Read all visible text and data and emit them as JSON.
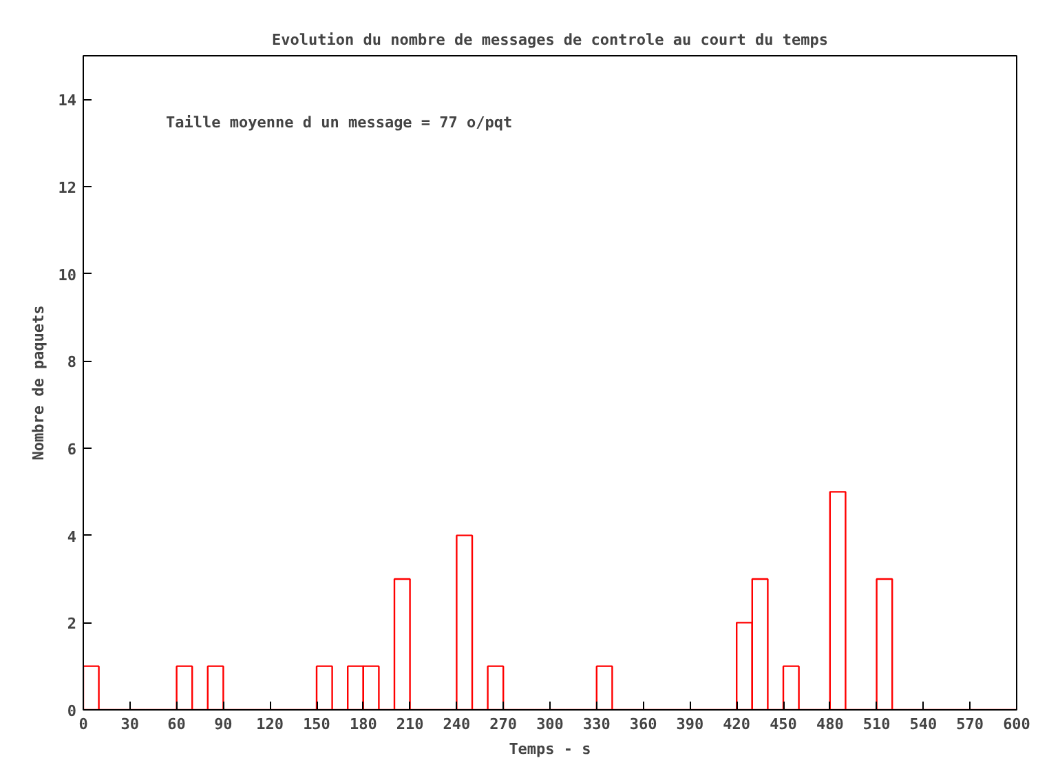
{
  "chart_data": {
    "type": "histogram",
    "title": "Evolution du nombre de messages de controle au court du temps",
    "xlabel": "Temps - s",
    "ylabel": "Nombre de paquets",
    "annotations": [
      "Taille moyenne d un message = 77 o/pqt"
    ],
    "bins": [
      0,
      10,
      20,
      30,
      40,
      50,
      60,
      70,
      80,
      90,
      100,
      110,
      120,
      130,
      140,
      150,
      160,
      170,
      180,
      190,
      200,
      210,
      220,
      230,
      240,
      250,
      260,
      270,
      280,
      290,
      300,
      310,
      320,
      330,
      340,
      350,
      360,
      370,
      380,
      390,
      400,
      410,
      420,
      430,
      440,
      450,
      460,
      470,
      480,
      490,
      500,
      510,
      520,
      530,
      540,
      550,
      560,
      570,
      580,
      590,
      600
    ],
    "values": [
      1,
      0,
      0,
      0,
      0,
      0,
      1,
      0,
      1,
      0,
      0,
      0,
      0,
      0,
      0,
      1,
      0,
      1,
      1,
      0,
      3,
      0,
      0,
      0,
      4,
      0,
      1,
      0,
      0,
      0,
      0,
      0,
      0,
      1,
      0,
      0,
      0,
      0,
      0,
      0,
      0,
      0,
      2,
      3,
      0,
      1,
      0,
      0,
      5,
      0,
      0,
      3,
      0,
      0,
      0,
      0,
      0,
      0,
      0,
      0
    ],
    "color": "#ff0000",
    "xlim": [
      0,
      600
    ],
    "ylim": [
      0,
      15
    ],
    "xticks": [
      0,
      30,
      60,
      90,
      120,
      150,
      180,
      210,
      240,
      270,
      300,
      330,
      360,
      390,
      420,
      450,
      480,
      510,
      540,
      570,
      600
    ],
    "yticks": [
      0,
      2,
      4,
      6,
      8,
      10,
      12,
      14
    ],
    "grid": false
  }
}
